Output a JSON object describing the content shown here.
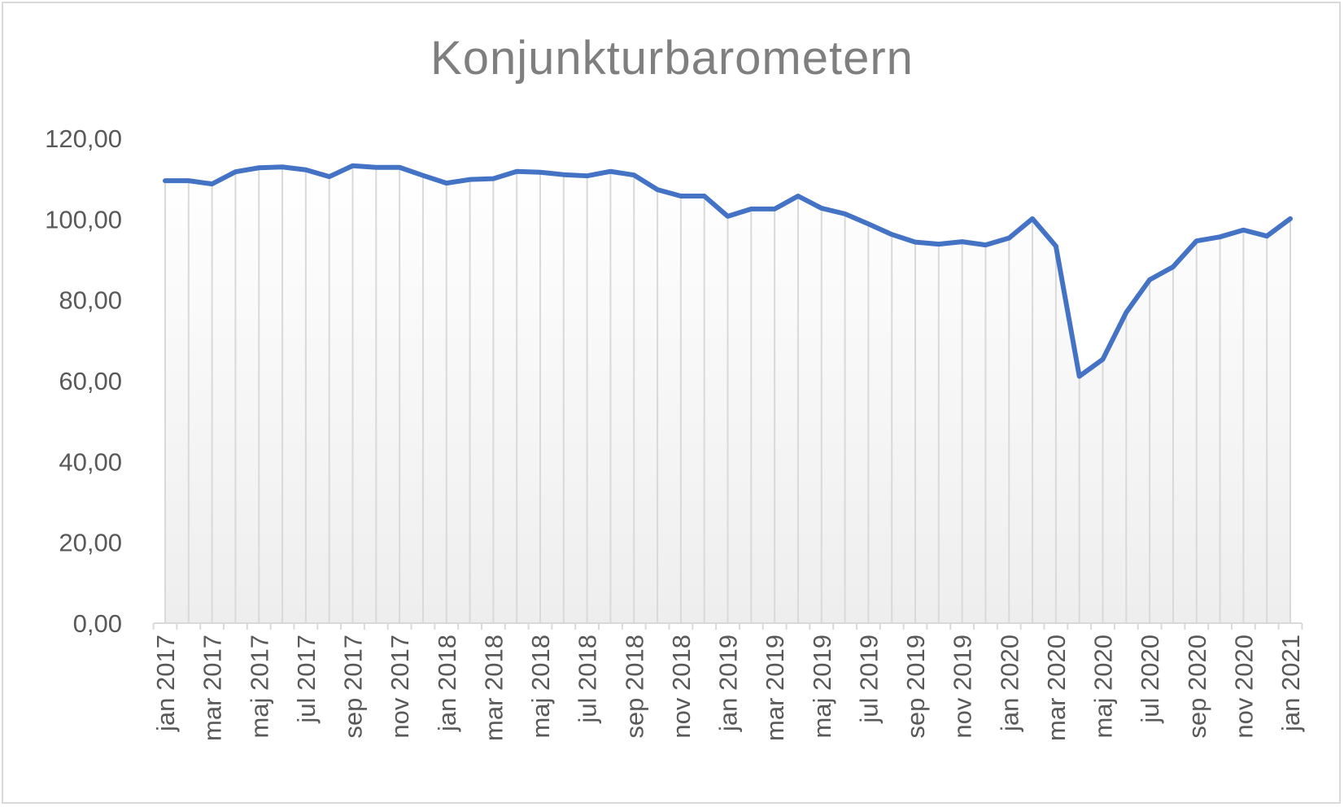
{
  "chart_data": {
    "type": "area",
    "title": "Konjunkturbarometern",
    "xlabel": "",
    "ylabel": "",
    "ylim": [
      0,
      120
    ],
    "ytick_labels": [
      "0,00",
      "20,00",
      "40,00",
      "60,00",
      "80,00",
      "100,00",
      "120,00"
    ],
    "x": [
      "jan 2017",
      "feb 2017",
      "mar 2017",
      "apr 2017",
      "maj 2017",
      "jun 2017",
      "jul 2017",
      "aug 2017",
      "sep 2017",
      "okt 2017",
      "nov 2017",
      "dec 2017",
      "jan 2018",
      "feb 2018",
      "mar 2018",
      "apr 2018",
      "maj 2018",
      "jun 2018",
      "jul 2018",
      "aug 2018",
      "sep 2018",
      "okt 2018",
      "nov 2018",
      "dec 2018",
      "jan 2019",
      "feb 2019",
      "mar 2019",
      "apr 2019",
      "maj 2019",
      "jun 2019",
      "jul 2019",
      "aug 2019",
      "sep 2019",
      "okt 2019",
      "nov 2019",
      "dec 2019",
      "jan 2020",
      "feb 2020",
      "mar 2020",
      "apr 2020",
      "maj 2020",
      "jun 2020",
      "jul 2020",
      "aug 2020",
      "sep 2020",
      "okt 2020",
      "nov 2020",
      "dec 2020",
      "jan 2021"
    ],
    "x_tick_labels_shown": [
      "jan 2017",
      "mar 2017",
      "maj 2017",
      "jul 2017",
      "sep 2017",
      "nov 2017",
      "jan 2018",
      "mar 2018",
      "maj 2018",
      "jul 2018",
      "sep 2018",
      "nov 2018",
      "jan 2019",
      "mar 2019",
      "maj 2019",
      "jul 2019",
      "sep 2019",
      "nov 2019",
      "jan 2020",
      "mar 2020",
      "maj 2020",
      "jul 2020",
      "sep 2020",
      "nov 2020",
      "jan 2021"
    ],
    "series": [
      {
        "name": "",
        "color": "#4472c4",
        "values": [
          109.5,
          109.5,
          108.7,
          111.7,
          112.7,
          112.9,
          112.2,
          110.5,
          113.2,
          112.8,
          112.8,
          110.8,
          108.9,
          109.8,
          110.0,
          111.8,
          111.6,
          111.0,
          110.7,
          111.8,
          110.9,
          107.3,
          105.7,
          105.7,
          100.7,
          102.5,
          102.5,
          105.7,
          102.7,
          101.3,
          98.8,
          96.2,
          94.3,
          93.8,
          94.4,
          93.6,
          95.3,
          100.1,
          93.3,
          61.1,
          65.3,
          76.9,
          85.0,
          88.2,
          94.6,
          95.6,
          97.3,
          95.8,
          100.1
        ]
      }
    ],
    "grid": "vertical",
    "legend": "none"
  }
}
